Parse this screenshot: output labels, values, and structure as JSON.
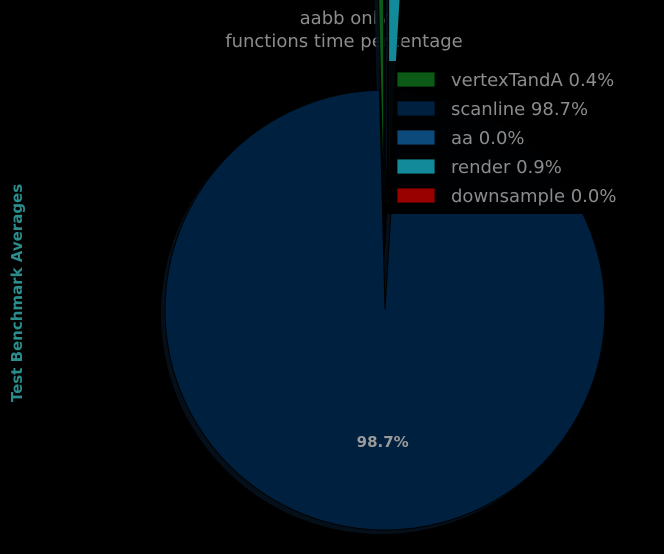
{
  "chart_data": {
    "type": "pie",
    "title": "aabb only",
    "subtitle": "functions time percentage",
    "ylabel": "Test Benchmark Averages",
    "labels": [
      "vertexTandA",
      "scanline",
      "aa",
      "render",
      "downsample"
    ],
    "values": [
      0.4,
      98.7,
      0.0,
      0.9,
      0.0
    ],
    "pct_labels": [
      "0.4%",
      "98.7%",
      "0.0%",
      "0.9%",
      "0.0%"
    ],
    "legend_labels": [
      "vertexTandA 0.4%",
      "scanline 98.7%",
      "aa 0.0%",
      "render 0.9%",
      "downsample 0.0%"
    ],
    "colors": [
      "#0b5a16",
      "#00203f",
      "#0b4a7a",
      "#138a99",
      "#990000"
    ],
    "legend_placement": "top-right",
    "explode": true
  }
}
